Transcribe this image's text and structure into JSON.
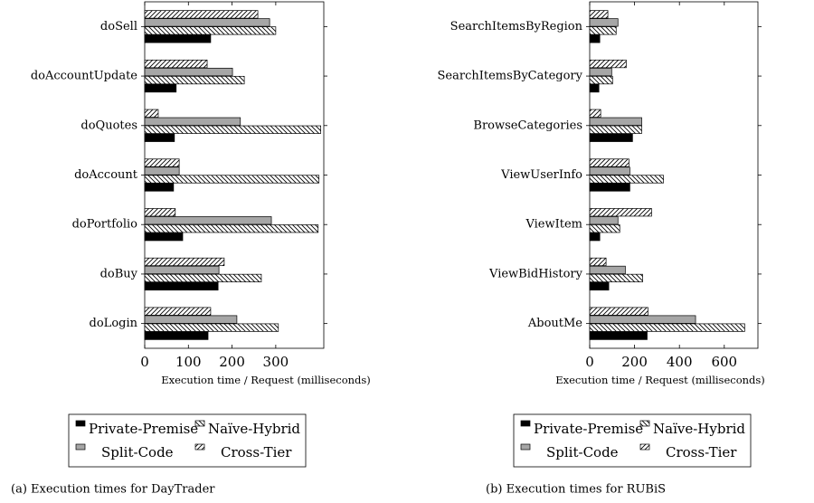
{
  "chart_data": [
    {
      "type": "bar",
      "orientation": "horizontal",
      "categories": [
        "doSell",
        "doAccountUpdate",
        "doQuotes",
        "doAccount",
        "doPortfolio",
        "doBuy",
        "doLogin"
      ],
      "series": [
        {
          "name": "Private-Premise",
          "color": "#000000",
          "values": [
            151,
            72,
            68,
            66,
            87,
            168,
            145
          ]
        },
        {
          "name": "Naïve-Hybrid",
          "color": "#ffffff",
          "hatch": "north west lines",
          "values": [
            300,
            228,
            403,
            399,
            397,
            267,
            306
          ]
        },
        {
          "name": "Split-Code",
          "color": "#a6a6a6",
          "values": [
            286,
            201,
            219,
            79,
            290,
            170,
            211
          ]
        },
        {
          "name": "Cross-Tier",
          "color": "#ffffff",
          "hatch": "north east lines",
          "values": [
            259,
            143,
            31,
            79,
            70,
            182,
            151
          ]
        }
      ],
      "xlim": [
        0,
        410
      ],
      "xticks": [
        0,
        100,
        200,
        300
      ],
      "xlabel": "Execution time / Request (milliseconds)",
      "caption": "(a) Execution times for DayTrader"
    },
    {
      "type": "bar",
      "orientation": "horizontal",
      "categories": [
        "SearchItemsByRegion",
        "SearchItemsByCategory",
        "BrowseCategories",
        "ViewUserInfo",
        "ViewItem",
        "ViewBidHistory",
        "AboutMe"
      ],
      "series": [
        {
          "name": "Private-Premise",
          "color": "#000000",
          "values": [
            45,
            41,
            191,
            179,
            45,
            85,
            256
          ]
        },
        {
          "name": "Naïve-Hybrid",
          "color": "#ffffff",
          "hatch": "north west lines",
          "values": [
            118,
            102,
            232,
            329,
            134,
            236,
            691
          ]
        },
        {
          "name": "Split-Code",
          "color": "#a6a6a6",
          "values": [
            126,
            98,
            232,
            179,
            126,
            159,
            472
          ]
        },
        {
          "name": "Cross-Tier",
          "color": "#ffffff",
          "hatch": "north east lines",
          "values": [
            81,
            163,
            49,
            175,
            276,
            73,
            260
          ]
        }
      ],
      "xlim": [
        0,
        750
      ],
      "xticks": [
        0,
        200,
        400,
        600
      ],
      "xlabel": "Execution time / Request (milliseconds)",
      "caption": "(b) Execution times for RUBiS"
    }
  ]
}
